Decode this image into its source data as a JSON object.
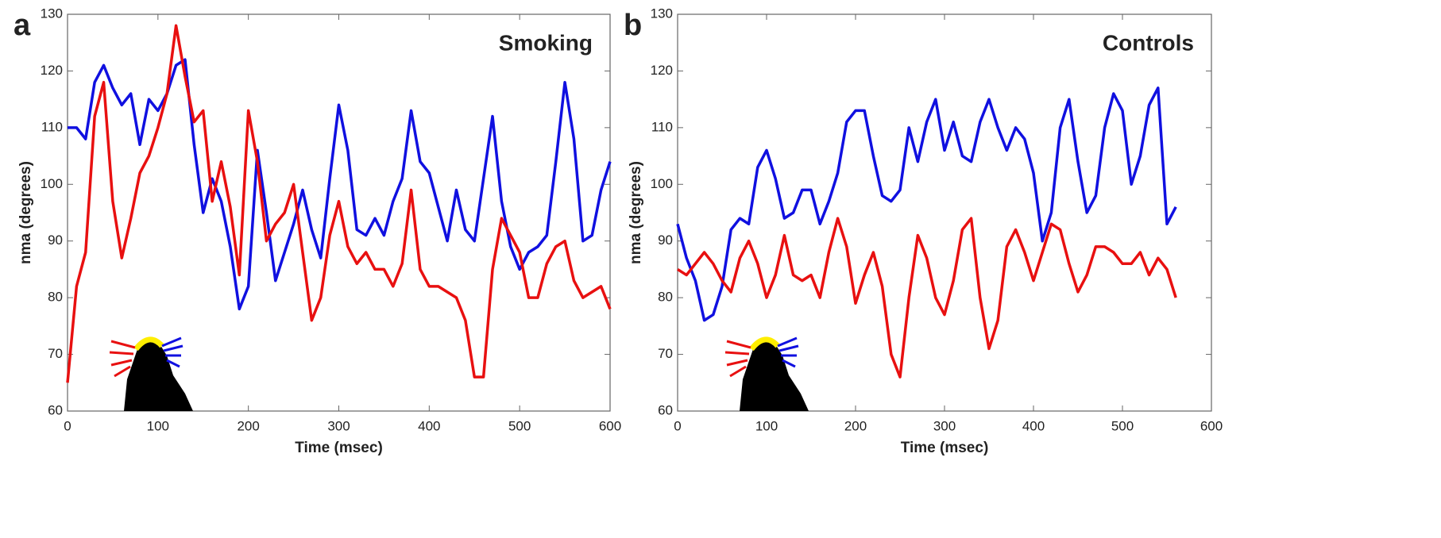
{
  "chart_data": [
    {
      "type": "line",
      "panel_label": "a",
      "title": "Smoking",
      "xlabel": "Time (msec)",
      "ylabel": "nma (degrees)",
      "xlim": [
        0,
        600
      ],
      "ylim": [
        60,
        130
      ],
      "xticks": [
        0,
        100,
        200,
        300,
        400,
        500,
        600
      ],
      "yticks": [
        60,
        70,
        80,
        90,
        100,
        110,
        120,
        130
      ],
      "x": [
        0,
        10,
        20,
        30,
        40,
        50,
        60,
        70,
        80,
        90,
        100,
        110,
        120,
        130,
        140,
        150,
        160,
        170,
        180,
        190,
        200,
        210,
        220,
        230,
        240,
        250,
        260,
        270,
        280,
        290,
        300,
        310,
        320,
        330,
        340,
        350,
        360,
        370,
        380,
        390,
        400,
        410,
        420,
        430,
        440,
        450,
        460,
        470,
        480,
        490,
        500,
        510,
        520,
        530,
        540,
        550,
        560,
        570,
        580,
        590,
        600
      ],
      "series": [
        {
          "color": "#1010e0",
          "values": [
            110,
            110,
            108,
            118,
            121,
            117,
            114,
            116,
            107,
            115,
            113,
            116,
            121,
            122,
            107,
            95,
            101,
            97,
            89,
            78,
            82,
            106,
            95,
            83,
            88,
            93,
            99,
            92,
            87,
            101,
            114,
            106,
            92,
            91,
            94,
            91,
            97,
            101,
            113,
            104,
            102,
            96,
            90,
            99,
            92,
            90,
            101,
            112,
            97,
            89,
            85,
            88,
            89,
            91,
            104,
            118,
            108,
            90,
            91,
            99,
            104
          ]
        },
        {
          "color": "#e81010",
          "values": [
            65,
            82,
            88,
            112,
            118,
            97,
            87,
            94,
            102,
            105,
            110,
            116,
            128,
            119,
            111,
            113,
            97,
            104,
            96,
            84,
            113,
            104,
            90,
            93,
            95,
            100,
            88,
            76,
            80,
            91,
            97,
            89,
            86,
            88,
            85,
            85,
            82,
            86,
            99,
            85,
            82,
            82,
            81,
            80,
            76,
            66,
            66,
            85,
            94,
            91,
            88,
            80,
            80,
            86,
            89,
            90,
            83,
            80,
            81,
            82,
            78
          ]
        }
      ]
    },
    {
      "type": "line",
      "panel_label": "b",
      "title": "Controls",
      "xlabel": "Time (msec)",
      "ylabel": "nma (degrees)",
      "xlim": [
        0,
        600
      ],
      "ylim": [
        60,
        130
      ],
      "xticks": [
        0,
        100,
        200,
        300,
        400,
        500,
        600
      ],
      "yticks": [
        60,
        70,
        80,
        90,
        100,
        110,
        120,
        130
      ],
      "x": [
        0,
        10,
        20,
        30,
        40,
        50,
        60,
        70,
        80,
        90,
        100,
        110,
        120,
        130,
        140,
        150,
        160,
        170,
        180,
        190,
        200,
        210,
        220,
        230,
        240,
        250,
        260,
        270,
        280,
        290,
        300,
        310,
        320,
        330,
        340,
        350,
        360,
        370,
        380,
        390,
        400,
        410,
        420,
        430,
        440,
        450,
        460,
        470,
        480,
        490,
        500,
        510,
        520,
        530,
        540,
        550,
        560
      ],
      "series": [
        {
          "color": "#1010e0",
          "values": [
            93,
            87,
            83,
            76,
            77,
            82,
            92,
            94,
            93,
            103,
            106,
            101,
            94,
            95,
            99,
            99,
            93,
            97,
            102,
            111,
            113,
            113,
            105,
            98,
            97,
            99,
            110,
            104,
            111,
            115,
            106,
            111,
            105,
            104,
            111,
            115,
            110,
            106,
            110,
            108,
            102,
            90,
            95,
            110,
            115,
            104,
            95,
            98,
            110,
            116,
            113,
            100,
            105,
            114,
            117,
            93,
            96
          ]
        },
        {
          "color": "#e81010",
          "values": [
            85,
            84,
            86,
            88,
            86,
            83,
            81,
            87,
            90,
            86,
            80,
            84,
            91,
            84,
            83,
            84,
            80,
            88,
            94,
            89,
            79,
            84,
            88,
            82,
            70,
            66,
            80,
            91,
            87,
            80,
            77,
            83,
            92,
            94,
            80,
            71,
            76,
            89,
            92,
            88,
            83,
            88,
            93,
            92,
            86,
            81,
            84,
            89,
            89,
            88,
            86,
            86,
            88,
            84,
            87,
            85,
            80
          ]
        }
      ]
    }
  ]
}
